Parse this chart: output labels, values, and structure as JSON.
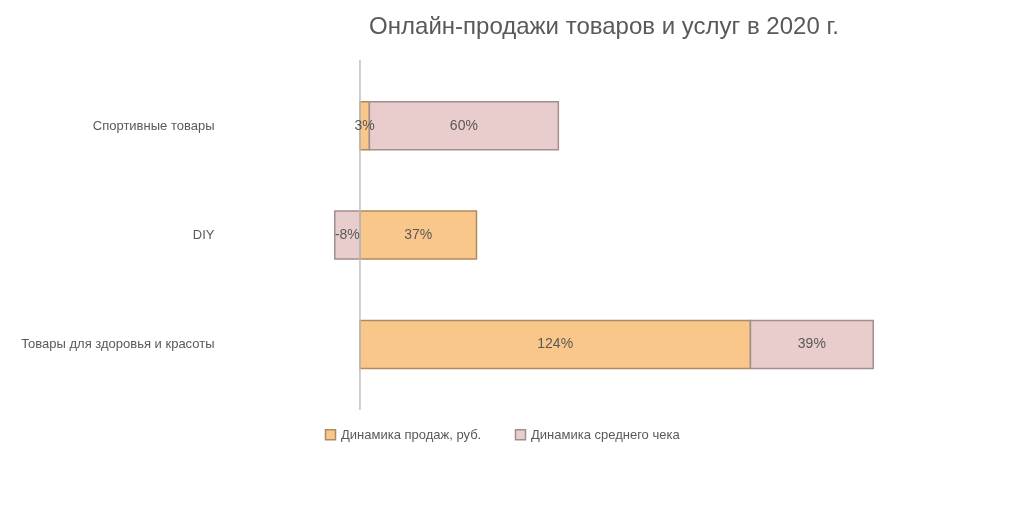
{
  "chart_data": {
    "type": "bar",
    "orientation": "horizontal",
    "stacked": true,
    "title": "Онлайн-продажи  товаров  и услуг  в 2020  г.",
    "categories": [
      "Спортивные товары",
      "DIY",
      "Товары для здоровья и красоты"
    ],
    "series": [
      {
        "name": "Динамика продаж, руб.",
        "color": "#f9c78a",
        "values": [
          3,
          37,
          124
        ],
        "value_labels": [
          "3%",
          "37%",
          "124%"
        ]
      },
      {
        "name": "Динамика среднего чека",
        "color": "#e9cccc",
        "values": [
          60,
          -8,
          39
        ],
        "value_labels": [
          "60%",
          "-8%",
          "39%"
        ]
      }
    ],
    "ref_lines": [
      {
        "axis": "x",
        "value": 0,
        "color": "#bfbfbf"
      }
    ],
    "legend": "bottom",
    "grid": false
  }
}
